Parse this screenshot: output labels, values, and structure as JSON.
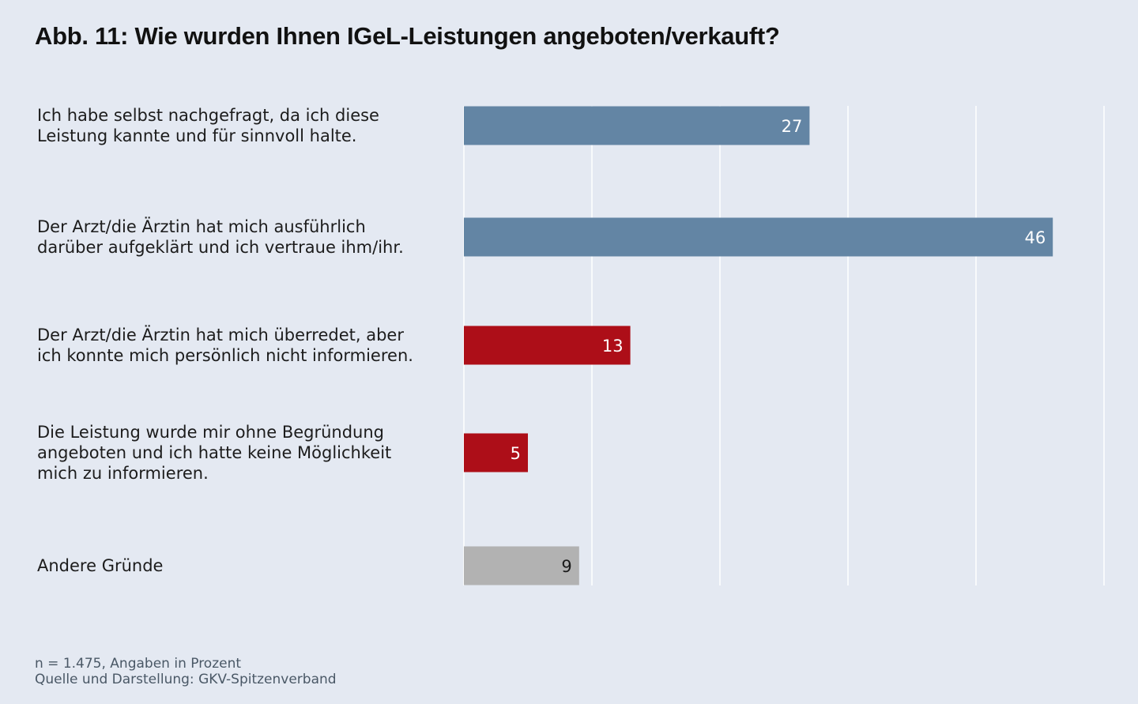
{
  "chart_data": {
    "type": "bar",
    "orientation": "horizontal",
    "title": "Abb. 11: Wie wurden Ihnen IGeL-Leistungen angeboten/verkauft?",
    "categories": [
      "Ich habe selbst nachgefragt, da ich diese Leistung kannte und für sinnvoll halte.",
      "Der Arzt/die Ärztin hat mich ausführlich darüber aufgeklärt und ich vertraue ihm/ihr.",
      "Der Arzt/die Ärztin hat mich überredet, aber ich konnte mich persönlich nicht informieren.",
      "Die Leistung wurde mir ohne Begründung angeboten und ich hatte keine Möglichkeit mich zu informieren.",
      "Andere Gründe"
    ],
    "category_lines": [
      [
        "Ich habe selbst nachgefragt, da ich diese",
        "Leistung kannte und für sinnvoll halte."
      ],
      [
        "Der Arzt/die Ärztin hat mich ausführlich",
        "darüber aufgeklärt und ich vertraue ihm/ihr."
      ],
      [
        "Der Arzt/die Ärztin hat mich überredet, aber",
        "ich konnte mich persönlich nicht informieren."
      ],
      [
        "Die Leistung wurde mir ohne Begründung",
        "angeboten und ich hatte keine Möglichkeit",
        "mich zu informieren."
      ],
      [
        "Andere Gründe"
      ]
    ],
    "values": [
      27,
      46,
      13,
      5,
      9
    ],
    "value_labels": [
      "27",
      "46",
      "13",
      "5",
      "9"
    ],
    "bar_colors": [
      "#6385a4",
      "#6385a4",
      "#ad0e18",
      "#ad0e18",
      "#b2b2b2"
    ],
    "label_colors": [
      "#ffffff",
      "#ffffff",
      "#ffffff",
      "#ffffff",
      "#1a1a1a"
    ],
    "xlim": [
      0,
      50
    ],
    "gridlines": [
      0,
      10,
      20,
      30,
      40,
      50
    ],
    "grid": true,
    "xlabel": "",
    "ylabel": "",
    "unit": "Prozent"
  },
  "footnotes": {
    "sample": "n = 1.475, Angaben in Prozent",
    "source": "Quelle und Darstellung: GKV-Spitzenverband"
  },
  "colors": {
    "background": "#e4e9f2",
    "grid": "#ffffff"
  }
}
